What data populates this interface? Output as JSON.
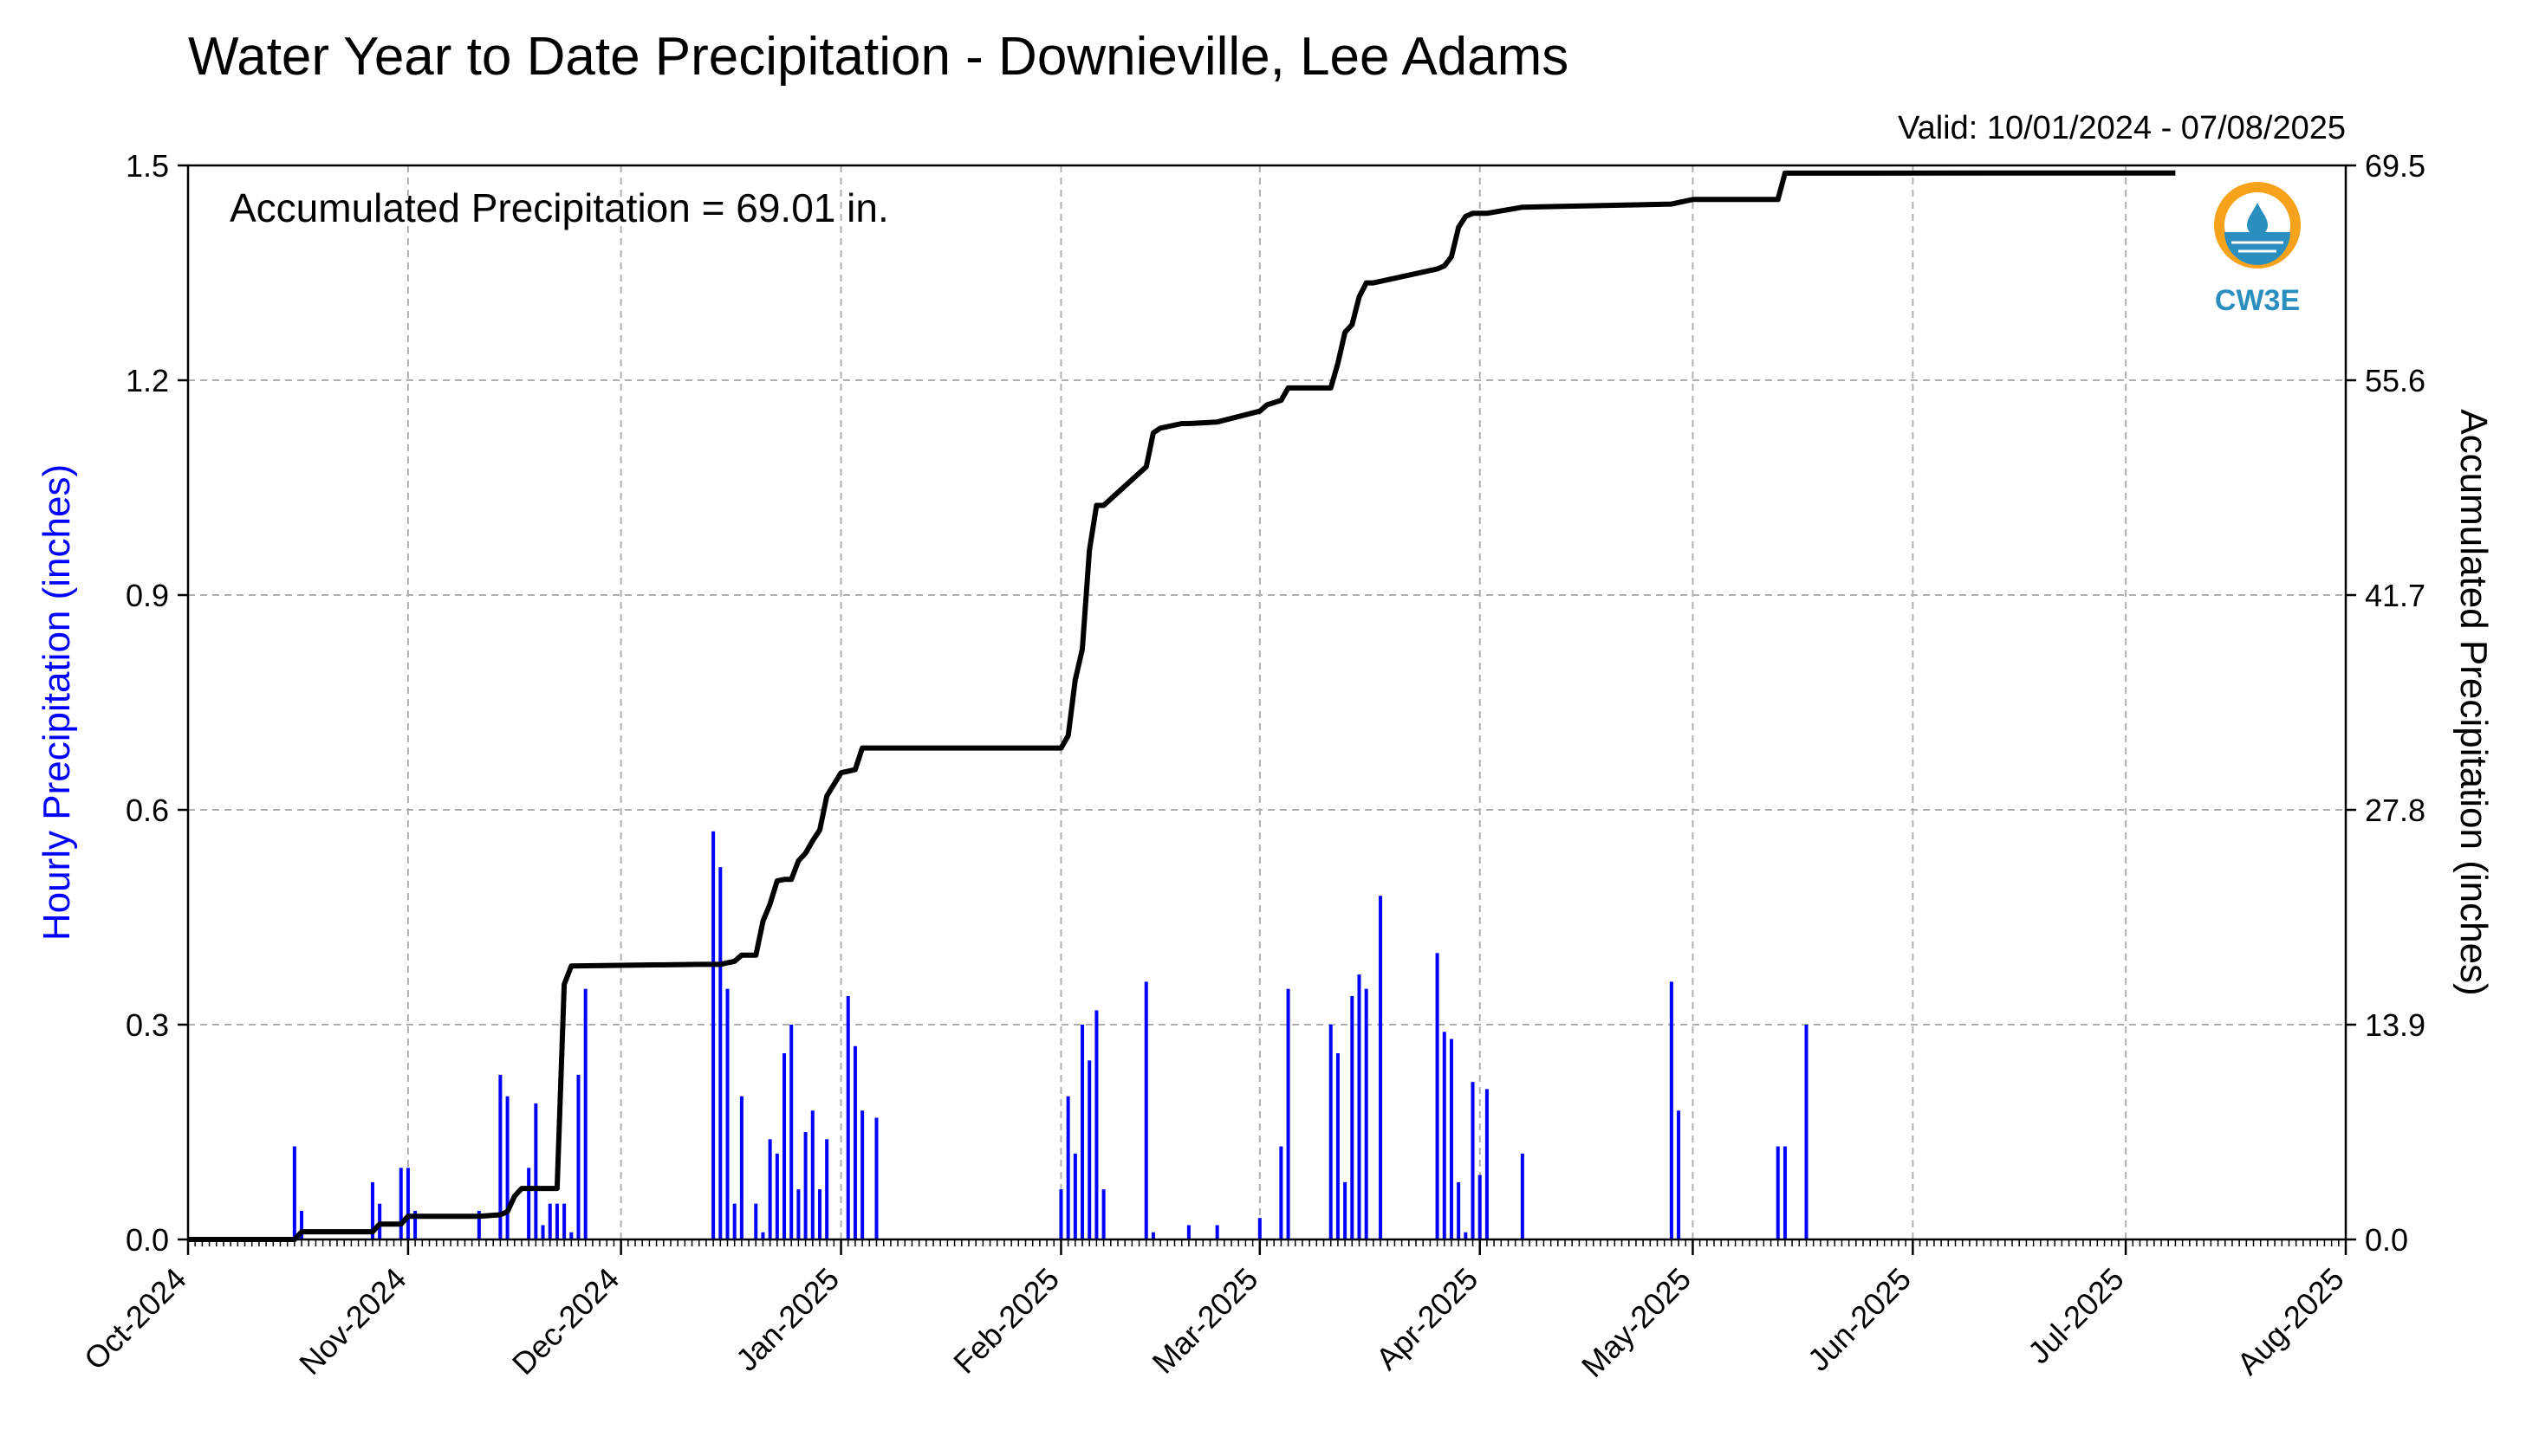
{
  "chart_data": {
    "type": "bar",
    "title": "Water Year to Date Precipitation - Downieville, Lee Adams",
    "subtitle": "Valid: 10/01/2024 - 07/08/2025",
    "annotation": "Accumulated Precipitation = 69.01 in.",
    "ylabel": "Hourly Precipitation (inches)",
    "y2label": "Accumulated Precipitation (inches)",
    "ylim": [
      0,
      1.5
    ],
    "y2lim": [
      0,
      69.5
    ],
    "y_ticks": [
      "0.0",
      "0.3",
      "0.6",
      "0.9",
      "1.2",
      "1.5"
    ],
    "y2_ticks": [
      "0.0",
      "13.9",
      "27.8",
      "41.7",
      "55.6",
      "69.5"
    ],
    "x_ticks": [
      "Oct-2024",
      "Nov-2024",
      "Dec-2024",
      "Jan-2025",
      "Feb-2025",
      "Mar-2025",
      "Apr-2025",
      "May-2025",
      "Jun-2025",
      "Jul-2025",
      "Aug-2025"
    ],
    "x_tick_dates": [
      "2024-10-01",
      "2024-11-01",
      "2024-12-01",
      "2025-01-01",
      "2025-02-01",
      "2025-03-01",
      "2025-04-01",
      "2025-05-01",
      "2025-06-01",
      "2025-07-01",
      "2025-08-01"
    ],
    "xlim": [
      "2024-10-01",
      "2025-08-01"
    ],
    "grid": true,
    "series": [
      {
        "name": "Hourly Precipitation",
        "type": "bar",
        "color": "#0000ff",
        "x": [
          "2024-10-16",
          "2024-10-17",
          "2024-10-27",
          "2024-10-28",
          "2024-10-31",
          "2024-11-01",
          "2024-11-02",
          "2024-11-11",
          "2024-11-14",
          "2024-11-15",
          "2024-11-18",
          "2024-11-19",
          "2024-11-20",
          "2024-11-21",
          "2024-11-22",
          "2024-11-23",
          "2024-11-24",
          "2024-11-25",
          "2024-11-26",
          "2024-12-14",
          "2024-12-15",
          "2024-12-16",
          "2024-12-17",
          "2024-12-18",
          "2024-12-20",
          "2024-12-21",
          "2024-12-22",
          "2024-12-23",
          "2024-12-24",
          "2024-12-25",
          "2024-12-26",
          "2024-12-27",
          "2024-12-28",
          "2024-12-29",
          "2024-12-30",
          "2025-01-02",
          "2025-01-03",
          "2025-01-04",
          "2025-01-06",
          "2025-02-01",
          "2025-02-02",
          "2025-02-03",
          "2025-02-04",
          "2025-02-05",
          "2025-02-06",
          "2025-02-07",
          "2025-02-13",
          "2025-02-14",
          "2025-02-19",
          "2025-02-23",
          "2025-03-01",
          "2025-03-04",
          "2025-03-05",
          "2025-03-11",
          "2025-03-12",
          "2025-03-13",
          "2025-03-14",
          "2025-03-15",
          "2025-03-16",
          "2025-03-18",
          "2025-03-26",
          "2025-03-27",
          "2025-03-28",
          "2025-03-29",
          "2025-03-30",
          "2025-03-31",
          "2025-04-01",
          "2025-04-02",
          "2025-04-07",
          "2025-04-28",
          "2025-04-29",
          "2025-05-13",
          "2025-05-14",
          "2025-05-17"
        ],
        "values": [
          0.13,
          0.04,
          0.08,
          0.05,
          0.1,
          0.1,
          0.04,
          0.04,
          0.23,
          0.2,
          0.1,
          0.19,
          0.02,
          0.05,
          0.05,
          0.05,
          0.01,
          0.23,
          0.35,
          0.57,
          0.52,
          0.35,
          0.05,
          0.2,
          0.05,
          0.01,
          0.14,
          0.12,
          0.26,
          0.3,
          0.07,
          0.15,
          0.18,
          0.07,
          0.14,
          0.34,
          0.27,
          0.18,
          0.17,
          0.07,
          0.2,
          0.12,
          0.3,
          0.25,
          0.32,
          0.07,
          0.36,
          0.01,
          0.02,
          0.02,
          0.03,
          0.13,
          0.35,
          0.3,
          0.26,
          0.08,
          0.34,
          0.37,
          0.35,
          0.48,
          0.4,
          0.29,
          0.28,
          0.08,
          0.01,
          0.22,
          0.09,
          0.21,
          0.12,
          0.36,
          0.18,
          0.13,
          0.13,
          0.3
        ]
      },
      {
        "name": "Accumulated Precipitation",
        "type": "line",
        "color": "#000000",
        "axis": "right",
        "x": [
          "2024-10-01",
          "2024-10-16",
          "2024-10-17",
          "2024-10-27",
          "2024-10-28",
          "2024-10-31",
          "2024-11-01",
          "2024-11-02",
          "2024-11-11",
          "2024-11-14",
          "2024-11-15",
          "2024-11-16",
          "2024-11-17",
          "2024-11-18",
          "2024-11-19",
          "2024-11-20",
          "2024-11-21",
          "2024-11-22",
          "2024-11-23",
          "2024-11-24",
          "2024-12-12",
          "2024-12-13",
          "2024-12-14",
          "2024-12-15",
          "2024-12-16",
          "2024-12-17",
          "2024-12-18",
          "2024-12-20",
          "2024-12-21",
          "2024-12-22",
          "2024-12-23",
          "2024-12-24",
          "2024-12-25",
          "2024-12-26",
          "2024-12-27",
          "2024-12-28",
          "2024-12-29",
          "2024-12-30",
          "2025-01-01",
          "2025-01-03",
          "2025-01-04",
          "2025-02-01",
          "2025-02-02",
          "2025-02-03",
          "2025-02-04",
          "2025-02-05",
          "2025-02-06",
          "2025-02-07",
          "2025-02-13",
          "2025-02-14",
          "2025-02-15",
          "2025-02-18",
          "2025-02-19",
          "2025-02-23",
          "2025-03-01",
          "2025-03-02",
          "2025-03-04",
          "2025-03-05",
          "2025-03-11",
          "2025-03-12",
          "2025-03-13",
          "2025-03-14",
          "2025-03-15",
          "2025-03-16",
          "2025-03-17",
          "2025-03-18",
          "2025-03-26",
          "2025-03-27",
          "2025-03-28",
          "2025-03-29",
          "2025-03-30",
          "2025-03-31",
          "2025-04-02",
          "2025-04-07",
          "2025-04-28",
          "2025-05-01",
          "2025-05-13",
          "2025-05-14",
          "2025-07-08"
        ],
        "values": [
          0.0,
          0.0,
          0.5,
          0.5,
          1.0,
          1.0,
          1.5,
          1.5,
          1.5,
          1.6,
          1.8,
          2.8,
          3.3,
          3.3,
          3.3,
          3.3,
          3.3,
          3.3,
          16.5,
          17.7,
          17.8,
          17.8,
          17.8,
          17.8,
          17.9,
          18.0,
          18.4,
          18.4,
          20.6,
          21.7,
          23.2,
          23.3,
          23.3,
          24.5,
          25.0,
          25.8,
          26.5,
          28.7,
          30.2,
          30.4,
          31.8,
          31.8,
          32.6,
          36.2,
          38.2,
          44.6,
          47.5,
          47.5,
          50.0,
          52.2,
          52.5,
          52.8,
          52.8,
          52.9,
          53.6,
          54.0,
          54.3,
          55.1,
          55.1,
          56.7,
          58.7,
          59.2,
          61.0,
          61.9,
          61.9,
          62.0,
          62.8,
          63.0,
          63.6,
          65.5,
          66.2,
          66.4,
          66.4,
          66.8,
          67.0,
          67.3,
          67.3,
          69.0,
          69.01
        ]
      }
    ]
  },
  "logo": {
    "text": "CW3E",
    "icon": "cw3e-water-drop-logo",
    "color": "#2a8fbf",
    "accent": "#f7a21b"
  }
}
